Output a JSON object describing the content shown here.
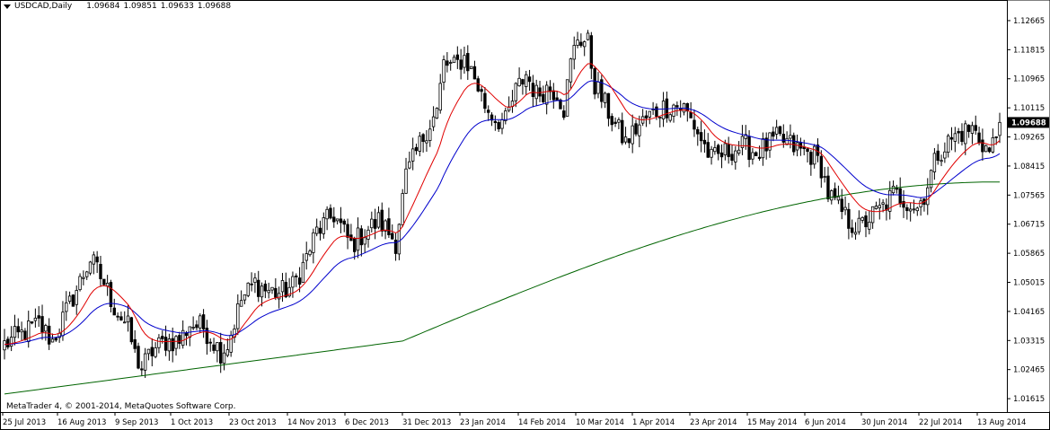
{
  "header": {
    "symbol": "USDCAD,Daily",
    "open": "1.09684",
    "high": "1.09851",
    "low": "1.09633",
    "close": "1.09688"
  },
  "footer": {
    "copyright": "MetaTrader 4, © 2001-2014, MetaQuotes Software Corp."
  },
  "current_price": "1.09688",
  "colors": {
    "background": "#ffffff",
    "candle": "#000000",
    "ma_fast": "#e00000",
    "ma_mid": "#0000cc",
    "ma_slow": "#006400",
    "price_box": "#000000"
  },
  "chart_data": {
    "type": "candlestick",
    "y_scale": {
      "min": 1.0125,
      "max": 1.129
    },
    "y_ticks": [
      "1.12665",
      "1.11815",
      "1.10965",
      "1.10115",
      "1.09265",
      "1.08415",
      "1.07565",
      "1.06715",
      "1.05865",
      "1.05015",
      "1.04165",
      "1.03315",
      "1.02465",
      "1.01615"
    ],
    "x_ticks": [
      "25 Jul 2013",
      "16 Aug 2013",
      "9 Sep 2013",
      "1 Oct 2013",
      "23 Oct 2013",
      "14 Nov 2013",
      "6 Dec 2013",
      "31 Dec 2013",
      "23 Jan 2014",
      "14 Feb 2014",
      "10 Mar 2014",
      "1 Apr 2014",
      "23 Apr 2014",
      "15 May 2014",
      "6 Jun 2014",
      "30 Jun 2014",
      "22 Jul 2014",
      "13 Aug 2014"
    ],
    "close_path": [
      [
        0,
        1.032
      ],
      [
        10,
        1.038
      ],
      [
        14,
        1.033
      ],
      [
        21,
        1.048
      ],
      [
        25,
        1.057
      ],
      [
        29,
        1.05
      ],
      [
        32,
        1.043
      ],
      [
        36,
        1.037
      ],
      [
        38,
        1.029
      ],
      [
        40,
        1.025
      ],
      [
        43,
        1.03
      ],
      [
        47,
        1.033
      ],
      [
        51,
        1.033
      ],
      [
        54,
        1.038
      ],
      [
        58,
        1.037
      ],
      [
        63,
        1.03
      ],
      [
        65,
        1.032
      ],
      [
        69,
        1.045
      ],
      [
        73,
        1.05
      ],
      [
        76,
        1.048
      ],
      [
        80,
        1.047
      ],
      [
        84,
        1.049
      ],
      [
        87,
        1.055
      ],
      [
        91,
        1.065
      ],
      [
        96,
        1.07
      ],
      [
        101,
        1.061
      ],
      [
        105,
        1.065
      ],
      [
        109,
        1.068
      ],
      [
        111,
        1.066
      ],
      [
        114,
        1.062
      ],
      [
        117,
        1.081
      ],
      [
        120,
        1.088
      ],
      [
        123,
        1.095
      ],
      [
        126,
        1.1
      ],
      [
        128,
        1.114
      ],
      [
        131,
        1.113
      ],
      [
        134,
        1.116
      ],
      [
        137,
        1.11
      ],
      [
        140,
        1.102
      ],
      [
        143,
        1.098
      ],
      [
        146,
        1.097
      ],
      [
        149,
        1.106
      ],
      [
        152,
        1.111
      ],
      [
        155,
        1.105
      ],
      [
        158,
        1.107
      ],
      [
        161,
        1.106
      ],
      [
        163,
        1.101
      ],
      [
        165,
        1.114
      ],
      [
        167,
        1.122
      ],
      [
        170,
        1.12
      ],
      [
        172,
        1.108
      ],
      [
        175,
        1.102
      ],
      [
        178,
        1.096
      ],
      [
        181,
        1.091
      ],
      [
        184,
        1.095
      ],
      [
        187,
        1.098
      ],
      [
        191,
        1.101
      ],
      [
        195,
        1.102
      ],
      [
        198,
        1.101
      ],
      [
        201,
        1.096
      ],
      [
        204,
        1.09
      ],
      [
        206,
        1.086
      ],
      [
        208,
        1.087
      ],
      [
        212,
        1.089
      ],
      [
        216,
        1.09
      ],
      [
        219,
        1.088
      ],
      [
        222,
        1.09
      ],
      [
        225,
        1.092
      ],
      [
        228,
        1.091
      ],
      [
        231,
        1.089
      ],
      [
        234,
        1.088
      ],
      [
        236,
        1.087
      ],
      [
        238,
        1.084
      ],
      [
        240,
        1.076
      ],
      [
        243,
        1.072
      ],
      [
        246,
        1.068
      ],
      [
        249,
        1.066
      ],
      [
        252,
        1.069
      ],
      [
        256,
        1.072
      ],
      [
        259,
        1.076
      ],
      [
        263,
        1.074
      ],
      [
        266,
        1.072
      ],
      [
        268,
        1.076
      ],
      [
        272,
        1.088
      ],
      [
        276,
        1.092
      ],
      [
        279,
        1.094
      ],
      [
        282,
        1.095
      ],
      [
        285,
        1.091
      ],
      [
        287,
        1.088
      ],
      [
        289,
        1.093
      ],
      [
        290,
        1.0969
      ]
    ],
    "ma_fast_label": "",
    "ma_mid_label": "",
    "ma_slow_label": ""
  }
}
